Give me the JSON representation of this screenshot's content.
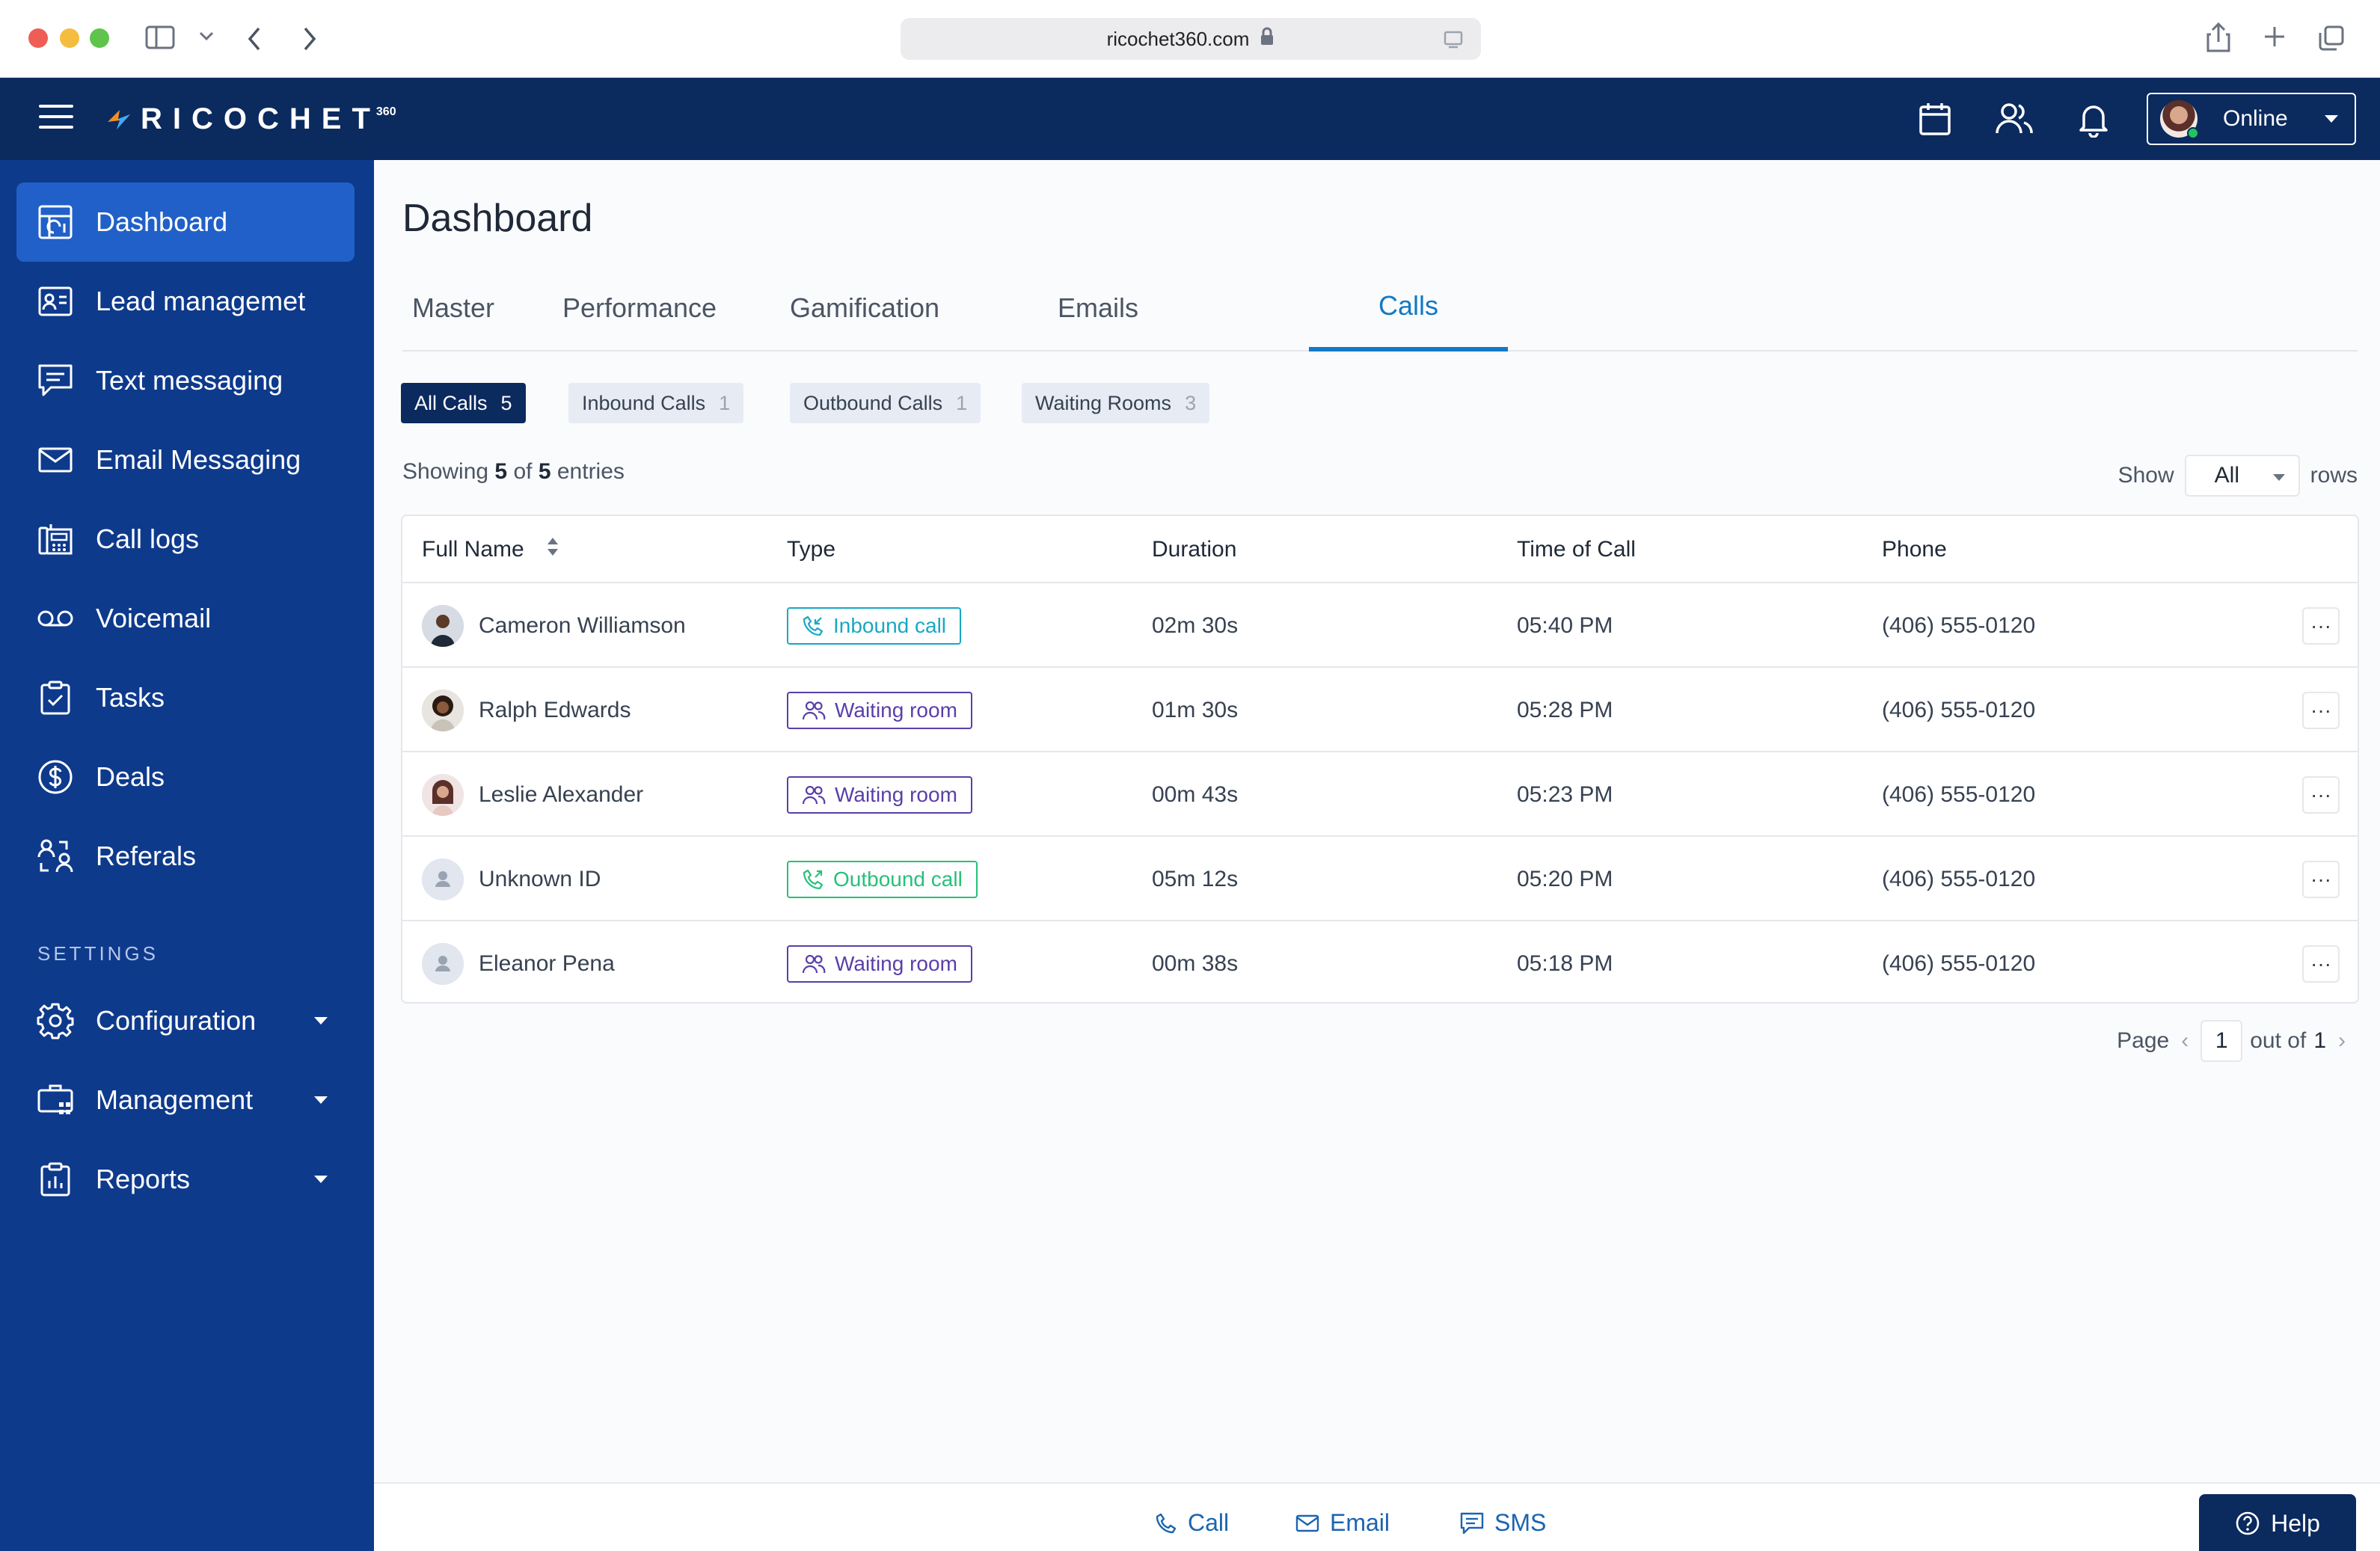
{
  "browser": {
    "url": "ricochet360.com"
  },
  "header": {
    "logo_text": "RICOCHET",
    "logo_sup": "360",
    "status_label": "Online"
  },
  "sidebar": {
    "items": [
      {
        "label": "Dashboard",
        "icon": "dashboard-icon"
      },
      {
        "label": "Lead managemet",
        "icon": "lead-card-icon"
      },
      {
        "label": "Text messaging",
        "icon": "chat-icon"
      },
      {
        "label": "Email Messaging",
        "icon": "mail-icon"
      },
      {
        "label": "Call logs",
        "icon": "call-log-icon"
      },
      {
        "label": "Voicemail",
        "icon": "voicemail-icon"
      },
      {
        "label": "Tasks",
        "icon": "clipboard-icon"
      },
      {
        "label": "Deals",
        "icon": "dollar-icon"
      },
      {
        "label": "Referals",
        "icon": "referral-icon"
      }
    ],
    "settings_heading": "SETTINGS",
    "settings_items": [
      {
        "label": "Configuration",
        "icon": "gear-icon"
      },
      {
        "label": "Management",
        "icon": "management-icon"
      },
      {
        "label": "Reports",
        "icon": "reports-icon"
      }
    ]
  },
  "main": {
    "title": "Dashboard",
    "tabs": [
      "Master",
      "Performance",
      "Gamification",
      "Emails",
      "Calls"
    ],
    "active_tab": "Calls",
    "filters": [
      {
        "label": "All Calls",
        "count": "5"
      },
      {
        "label": "Inbound Calls",
        "count": "1"
      },
      {
        "label": "Outbound Calls",
        "count": "1"
      },
      {
        "label": "Waiting Rooms",
        "count": "3"
      }
    ],
    "showing": {
      "prefix": "Showing",
      "shown": "5",
      "of": "of",
      "total": "5",
      "suffix": "entries"
    },
    "rows_control": {
      "show": "Show",
      "value": "All",
      "rows": "rows"
    },
    "table": {
      "columns": [
        "Full Name",
        "Type",
        "Duration",
        "Time of Call",
        "Phone"
      ],
      "rows": [
        {
          "name": "Cameron Williamson",
          "type": "Inbound call",
          "duration": "02m 30s",
          "time": "05:40 PM",
          "phone": "(406) 555-0120"
        },
        {
          "name": "Ralph Edwards",
          "type": "Waiting room",
          "duration": "01m 30s",
          "time": "05:28 PM",
          "phone": "(406) 555-0120"
        },
        {
          "name": "Leslie Alexander",
          "type": "Waiting room",
          "duration": "00m 43s",
          "time": "05:23 PM",
          "phone": "(406) 555-0120"
        },
        {
          "name": "Unknown ID",
          "type": "Outbound call",
          "duration": "05m 12s",
          "time": "05:20 PM",
          "phone": "(406) 555-0120"
        },
        {
          "name": "Eleanor Pena",
          "type": "Waiting room",
          "duration": "00m 38s",
          "time": "05:18 PM",
          "phone": "(406) 555-0120"
        }
      ],
      "row_action": "···"
    },
    "pager": {
      "page": "Page",
      "current": "1",
      "out_of": "out of",
      "total": "1"
    }
  },
  "footer": {
    "call": "Call",
    "email": "Email",
    "sms": "SMS",
    "help": "Help"
  },
  "colors": {
    "header_bg": "#0b2a5e",
    "sidebar_bg": "#0e3a8c",
    "sidebar_active": "#2060c8",
    "accent": "#1279c6",
    "inbound": "#19a7c4",
    "waiting": "#5a3fa8",
    "outbound": "#28c07a"
  }
}
